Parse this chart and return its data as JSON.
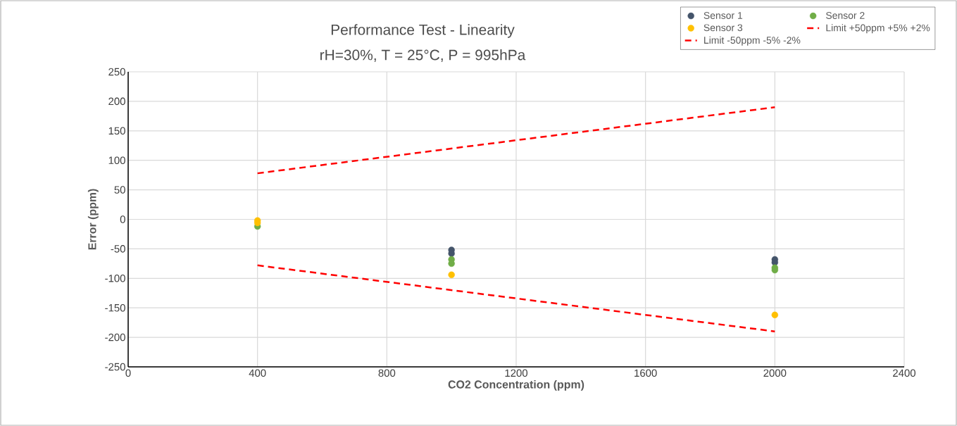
{
  "chart_data": {
    "type": "scatter",
    "title": "Performance Test - Linearity",
    "subtitle": "rH=30%, T = 25°C, P = 995hPa",
    "xlabel": "CO2 Concentration (ppm)",
    "ylabel": "Error (ppm)",
    "xlim": [
      0,
      2400
    ],
    "xticks": [
      0,
      400,
      800,
      1200,
      1600,
      2000,
      2400
    ],
    "ylim": [
      -250,
      250
    ],
    "yticks": [
      -250,
      -200,
      -150,
      -100,
      -50,
      0,
      50,
      100,
      150,
      200,
      250
    ],
    "grid": true,
    "legend": "top right",
    "series": [
      {
        "name": "Sensor 1",
        "marker": "circle",
        "color": "#44546a",
        "x": [
          1000,
          1000,
          2000,
          2000
        ],
        "values": [
          -52,
          -58,
          -68,
          -73
        ]
      },
      {
        "name": "Sensor 2",
        "marker": "circle",
        "color": "#70ad47",
        "x": [
          400,
          1000,
          1000,
          2000,
          2000
        ],
        "values": [
          -12,
          -68,
          -75,
          -82,
          -86
        ]
      },
      {
        "name": "Sensor 3",
        "marker": "circle",
        "color": "#ffc000",
        "x": [
          400,
          400,
          1000,
          2000
        ],
        "values": [
          -2,
          -6,
          -94,
          -162
        ]
      },
      {
        "name": "Limit +50ppm +5% +2%",
        "type": "line",
        "marker": "none",
        "line_style": "dashed",
        "color": "#ff0000",
        "x": [
          400,
          2000
        ],
        "values": [
          78,
          190
        ]
      },
      {
        "name": "Limit -50ppm -5% -2%",
        "type": "line",
        "marker": "none",
        "line_style": "dashed",
        "color": "#ff0000",
        "x": [
          400,
          2000
        ],
        "values": [
          -78,
          -190
        ]
      }
    ]
  }
}
